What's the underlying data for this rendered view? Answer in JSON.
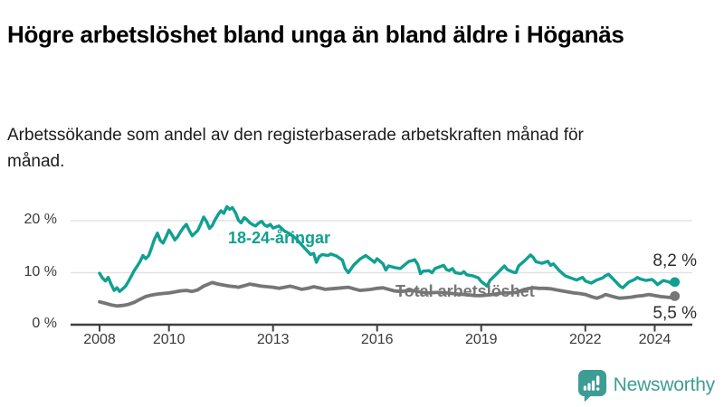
{
  "chart_data": {
    "type": "line",
    "title": "Högre arbetslöshet bland unga än bland äldre i Höganäs",
    "subtitle": "Arbetssökande som andel av den registerbaserade arbetskraften månad för månad.",
    "xlabel": "",
    "ylabel": "%",
    "xlim": [
      2008,
      2024.75
    ],
    "ylim": [
      0,
      24
    ],
    "grid": "horizontal",
    "legend_position": "inline-labels",
    "x_ticks": [
      2008,
      2010,
      2013,
      2016,
      2019,
      2022,
      2024
    ],
    "y_ticks": [
      {
        "value": 0,
        "label": "0 %"
      },
      {
        "value": 10,
        "label": "10 %"
      },
      {
        "value": 20,
        "label": "20 %"
      }
    ],
    "series": [
      {
        "name": "18-24-åringar",
        "color": "#10A091",
        "end_label": "8,2 %",
        "end_value": 8.2,
        "points": [
          [
            2008.0,
            9.9
          ],
          [
            2008.08,
            9.0
          ],
          [
            2008.17,
            8.4
          ],
          [
            2008.25,
            9.1
          ],
          [
            2008.33,
            7.8
          ],
          [
            2008.42,
            6.6
          ],
          [
            2008.5,
            7.1
          ],
          [
            2008.58,
            6.4
          ],
          [
            2008.67,
            6.9
          ],
          [
            2008.75,
            7.4
          ],
          [
            2008.83,
            8.3
          ],
          [
            2008.92,
            9.4
          ],
          [
            2009.0,
            10.4
          ],
          [
            2009.08,
            11.2
          ],
          [
            2009.17,
            12.2
          ],
          [
            2009.25,
            13.3
          ],
          [
            2009.33,
            12.7
          ],
          [
            2009.42,
            13.3
          ],
          [
            2009.5,
            14.8
          ],
          [
            2009.58,
            16.4
          ],
          [
            2009.67,
            17.6
          ],
          [
            2009.75,
            16.2
          ],
          [
            2009.83,
            15.7
          ],
          [
            2009.92,
            16.9
          ],
          [
            2010.0,
            18.2
          ],
          [
            2010.08,
            17.4
          ],
          [
            2010.17,
            16.3
          ],
          [
            2010.25,
            16.9
          ],
          [
            2010.33,
            17.8
          ],
          [
            2010.42,
            18.7
          ],
          [
            2010.5,
            19.3
          ],
          [
            2010.58,
            18.2
          ],
          [
            2010.67,
            17.1
          ],
          [
            2010.75,
            17.6
          ],
          [
            2010.83,
            18.1
          ],
          [
            2010.92,
            19.4
          ],
          [
            2011.0,
            20.7
          ],
          [
            2011.08,
            19.9
          ],
          [
            2011.17,
            18.5
          ],
          [
            2011.25,
            19.1
          ],
          [
            2011.33,
            20.2
          ],
          [
            2011.42,
            21.2
          ],
          [
            2011.5,
            21.9
          ],
          [
            2011.58,
            21.4
          ],
          [
            2011.67,
            22.7
          ],
          [
            2011.75,
            22.2
          ],
          [
            2011.83,
            22.5
          ],
          [
            2011.92,
            21.5
          ],
          [
            2012.0,
            20.1
          ],
          [
            2012.08,
            19.6
          ],
          [
            2012.17,
            20.6
          ],
          [
            2012.25,
            20.2
          ],
          [
            2012.33,
            19.6
          ],
          [
            2012.42,
            19.2
          ],
          [
            2012.5,
            19.0
          ],
          [
            2012.58,
            19.5
          ],
          [
            2012.67,
            19.9
          ],
          [
            2012.75,
            19.2
          ],
          [
            2012.83,
            18.9
          ],
          [
            2012.92,
            19.3
          ],
          [
            2013.0,
            18.6
          ],
          [
            2013.17,
            19.0
          ],
          [
            2013.33,
            18.0
          ],
          [
            2013.5,
            17.4
          ],
          [
            2013.67,
            16.5
          ],
          [
            2013.83,
            15.3
          ],
          [
            2014.0,
            14.1
          ],
          [
            2014.08,
            13.5
          ],
          [
            2014.17,
            13.7
          ],
          [
            2014.25,
            12.0
          ],
          [
            2014.33,
            13.1
          ],
          [
            2014.42,
            13.5
          ],
          [
            2014.58,
            13.3
          ],
          [
            2014.67,
            13.6
          ],
          [
            2014.83,
            13.2
          ],
          [
            2015.0,
            12.4
          ],
          [
            2015.08,
            10.8
          ],
          [
            2015.17,
            10.0
          ],
          [
            2015.33,
            11.5
          ],
          [
            2015.5,
            12.6
          ],
          [
            2015.67,
            13.3
          ],
          [
            2015.83,
            12.5
          ],
          [
            2015.92,
            12.0
          ],
          [
            2016.0,
            12.7
          ],
          [
            2016.17,
            11.7
          ],
          [
            2016.25,
            10.5
          ],
          [
            2016.33,
            11.3
          ],
          [
            2016.5,
            11.0
          ],
          [
            2016.67,
            10.8
          ],
          [
            2016.83,
            11.7
          ],
          [
            2016.92,
            12.2
          ],
          [
            2017.0,
            12.3
          ],
          [
            2017.08,
            12.5
          ],
          [
            2017.17,
            11.6
          ],
          [
            2017.25,
            9.8
          ],
          [
            2017.33,
            10.3
          ],
          [
            2017.5,
            10.4
          ],
          [
            2017.58,
            10.0
          ],
          [
            2017.67,
            10.8
          ],
          [
            2017.83,
            11.2
          ],
          [
            2017.92,
            11.4
          ],
          [
            2018.0,
            10.6
          ],
          [
            2018.08,
            10.4
          ],
          [
            2018.17,
            10.8
          ],
          [
            2018.25,
            10.0
          ],
          [
            2018.42,
            9.8
          ],
          [
            2018.5,
            10.2
          ],
          [
            2018.58,
            9.6
          ],
          [
            2018.75,
            9.4
          ],
          [
            2018.92,
            9.0
          ],
          [
            2019.0,
            8.3
          ],
          [
            2019.08,
            7.9
          ],
          [
            2019.17,
            7.4
          ],
          [
            2019.25,
            8.5
          ],
          [
            2019.42,
            9.6
          ],
          [
            2019.58,
            10.7
          ],
          [
            2019.67,
            11.3
          ],
          [
            2019.75,
            10.6
          ],
          [
            2019.92,
            10.1
          ],
          [
            2020.0,
            10.0
          ],
          [
            2020.08,
            11.3
          ],
          [
            2020.25,
            12.3
          ],
          [
            2020.42,
            13.4
          ],
          [
            2020.5,
            12.9
          ],
          [
            2020.58,
            12.1
          ],
          [
            2020.75,
            11.8
          ],
          [
            2020.92,
            12.2
          ],
          [
            2021.0,
            11.4
          ],
          [
            2021.08,
            11.7
          ],
          [
            2021.25,
            10.4
          ],
          [
            2021.42,
            9.4
          ],
          [
            2021.58,
            9.0
          ],
          [
            2021.75,
            8.6
          ],
          [
            2021.92,
            9.1
          ],
          [
            2022.0,
            8.4
          ],
          [
            2022.17,
            8.0
          ],
          [
            2022.33,
            8.6
          ],
          [
            2022.5,
            9.0
          ],
          [
            2022.58,
            9.4
          ],
          [
            2022.67,
            9.7
          ],
          [
            2022.83,
            8.6
          ],
          [
            2023.0,
            7.4
          ],
          [
            2023.08,
            7.1
          ],
          [
            2023.25,
            8.2
          ],
          [
            2023.42,
            8.7
          ],
          [
            2023.5,
            9.1
          ],
          [
            2023.58,
            8.8
          ],
          [
            2023.75,
            8.5
          ],
          [
            2023.92,
            8.7
          ],
          [
            2024.0,
            8.3
          ],
          [
            2024.08,
            7.7
          ],
          [
            2024.25,
            8.5
          ],
          [
            2024.42,
            8.2
          ],
          [
            2024.5,
            7.8
          ],
          [
            2024.58,
            8.2
          ]
        ]
      },
      {
        "name": "Total arbetslöshet",
        "color": "#767676",
        "end_label": "5,5 %",
        "end_value": 5.5,
        "points": [
          [
            2008.0,
            4.4
          ],
          [
            2008.17,
            4.1
          ],
          [
            2008.33,
            3.8
          ],
          [
            2008.5,
            3.6
          ],
          [
            2008.67,
            3.7
          ],
          [
            2008.83,
            3.9
          ],
          [
            2009.0,
            4.3
          ],
          [
            2009.17,
            4.9
          ],
          [
            2009.33,
            5.4
          ],
          [
            2009.5,
            5.7
          ],
          [
            2009.67,
            5.9
          ],
          [
            2009.83,
            6.0
          ],
          [
            2010.0,
            6.1
          ],
          [
            2010.17,
            6.3
          ],
          [
            2010.33,
            6.5
          ],
          [
            2010.5,
            6.6
          ],
          [
            2010.67,
            6.4
          ],
          [
            2010.83,
            6.7
          ],
          [
            2011.0,
            7.4
          ],
          [
            2011.17,
            7.9
          ],
          [
            2011.25,
            8.1
          ],
          [
            2011.42,
            7.8
          ],
          [
            2011.58,
            7.6
          ],
          [
            2011.75,
            7.4
          ],
          [
            2011.92,
            7.3
          ],
          [
            2012.0,
            7.2
          ],
          [
            2012.17,
            7.5
          ],
          [
            2012.33,
            7.8
          ],
          [
            2012.5,
            7.6
          ],
          [
            2012.67,
            7.4
          ],
          [
            2012.83,
            7.3
          ],
          [
            2013.0,
            7.2
          ],
          [
            2013.17,
            7.0
          ],
          [
            2013.33,
            7.2
          ],
          [
            2013.5,
            7.4
          ],
          [
            2013.67,
            7.1
          ],
          [
            2013.83,
            6.8
          ],
          [
            2014.0,
            7.0
          ],
          [
            2014.17,
            7.3
          ],
          [
            2014.33,
            7.1
          ],
          [
            2014.5,
            6.8
          ],
          [
            2014.67,
            6.9
          ],
          [
            2014.83,
            7.0
          ],
          [
            2015.0,
            7.1
          ],
          [
            2015.17,
            7.2
          ],
          [
            2015.33,
            6.9
          ],
          [
            2015.5,
            6.6
          ],
          [
            2015.67,
            6.7
          ],
          [
            2015.83,
            6.8
          ],
          [
            2016.0,
            7.0
          ],
          [
            2016.17,
            7.1
          ],
          [
            2016.33,
            6.8
          ],
          [
            2016.5,
            6.5
          ],
          [
            2016.67,
            6.4
          ],
          [
            2016.83,
            6.5
          ],
          [
            2017.0,
            6.6
          ],
          [
            2017.17,
            6.4
          ],
          [
            2017.33,
            6.2
          ],
          [
            2017.5,
            6.1
          ],
          [
            2017.67,
            6.2
          ],
          [
            2017.83,
            6.2
          ],
          [
            2018.0,
            6.1
          ],
          [
            2018.17,
            6.0
          ],
          [
            2018.33,
            5.9
          ],
          [
            2018.5,
            5.8
          ],
          [
            2018.67,
            5.7
          ],
          [
            2018.83,
            5.6
          ],
          [
            2019.0,
            5.6
          ],
          [
            2019.17,
            5.7
          ],
          [
            2019.33,
            5.8
          ],
          [
            2019.5,
            6.0
          ],
          [
            2019.67,
            6.1
          ],
          [
            2019.83,
            6.1
          ],
          [
            2020.0,
            6.2
          ],
          [
            2020.17,
            6.6
          ],
          [
            2020.33,
            6.9
          ],
          [
            2020.5,
            7.1
          ],
          [
            2020.67,
            7.0
          ],
          [
            2020.83,
            7.0
          ],
          [
            2021.0,
            6.9
          ],
          [
            2021.17,
            6.7
          ],
          [
            2021.33,
            6.5
          ],
          [
            2021.5,
            6.3
          ],
          [
            2021.67,
            6.1
          ],
          [
            2021.83,
            6.0
          ],
          [
            2022.0,
            5.8
          ],
          [
            2022.17,
            5.4
          ],
          [
            2022.33,
            5.1
          ],
          [
            2022.5,
            5.5
          ],
          [
            2022.58,
            5.8
          ],
          [
            2022.75,
            5.5
          ],
          [
            2022.92,
            5.2
          ],
          [
            2023.0,
            5.1
          ],
          [
            2023.17,
            5.2
          ],
          [
            2023.33,
            5.3
          ],
          [
            2023.5,
            5.5
          ],
          [
            2023.67,
            5.6
          ],
          [
            2023.83,
            5.8
          ],
          [
            2024.0,
            5.6
          ],
          [
            2024.17,
            5.4
          ],
          [
            2024.33,
            5.3
          ],
          [
            2024.5,
            5.2
          ],
          [
            2024.58,
            5.5
          ]
        ]
      }
    ]
  },
  "colors": {
    "youth_line": "#10A091",
    "total_line": "#767676",
    "grid_line": "#E3E3E3",
    "axis_line": "#3F3F3F",
    "end_label_text": "#2B2B2B",
    "brand_teal": "#3E9D92"
  },
  "branding": {
    "text": "Newsworthy",
    "icon": "bar-chart-speech-bubble"
  }
}
